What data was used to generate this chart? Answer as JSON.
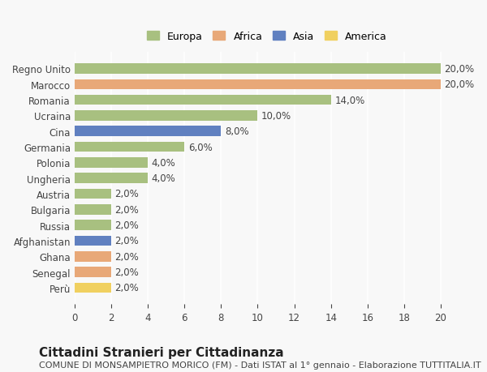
{
  "countries": [
    "Regno Unito",
    "Marocco",
    "Romania",
    "Ucraina",
    "Cina",
    "Germania",
    "Polonia",
    "Ungheria",
    "Austria",
    "Bulgaria",
    "Russia",
    "Afghanistan",
    "Ghana",
    "Senegal",
    "Perù"
  ],
  "values": [
    20.0,
    20.0,
    14.0,
    10.0,
    8.0,
    6.0,
    4.0,
    4.0,
    2.0,
    2.0,
    2.0,
    2.0,
    2.0,
    2.0,
    2.0
  ],
  "continents": [
    "Europa",
    "Africa",
    "Europa",
    "Europa",
    "Asia",
    "Europa",
    "Europa",
    "Europa",
    "Europa",
    "Europa",
    "Europa",
    "Asia",
    "Africa",
    "Africa",
    "America"
  ],
  "colors": {
    "Europa": "#a8c080",
    "Africa": "#e8a878",
    "Asia": "#6080c0",
    "America": "#f0d060"
  },
  "legend_order": [
    "Europa",
    "Africa",
    "Asia",
    "America"
  ],
  "xlim": [
    0,
    21
  ],
  "xticks": [
    0,
    2,
    4,
    6,
    8,
    10,
    12,
    14,
    16,
    18,
    20
  ],
  "title": "Cittadini Stranieri per Cittadinanza",
  "subtitle": "COMUNE DI MONSAMPIETRO MORICO (FM) - Dati ISTAT al 1° gennaio - Elaborazione TUTTITALIA.IT",
  "background_color": "#f8f8f8",
  "bar_height": 0.65,
  "title_fontsize": 11,
  "subtitle_fontsize": 8,
  "label_fontsize": 8.5,
  "value_fontsize": 8.5,
  "tick_fontsize": 8.5,
  "legend_fontsize": 9
}
